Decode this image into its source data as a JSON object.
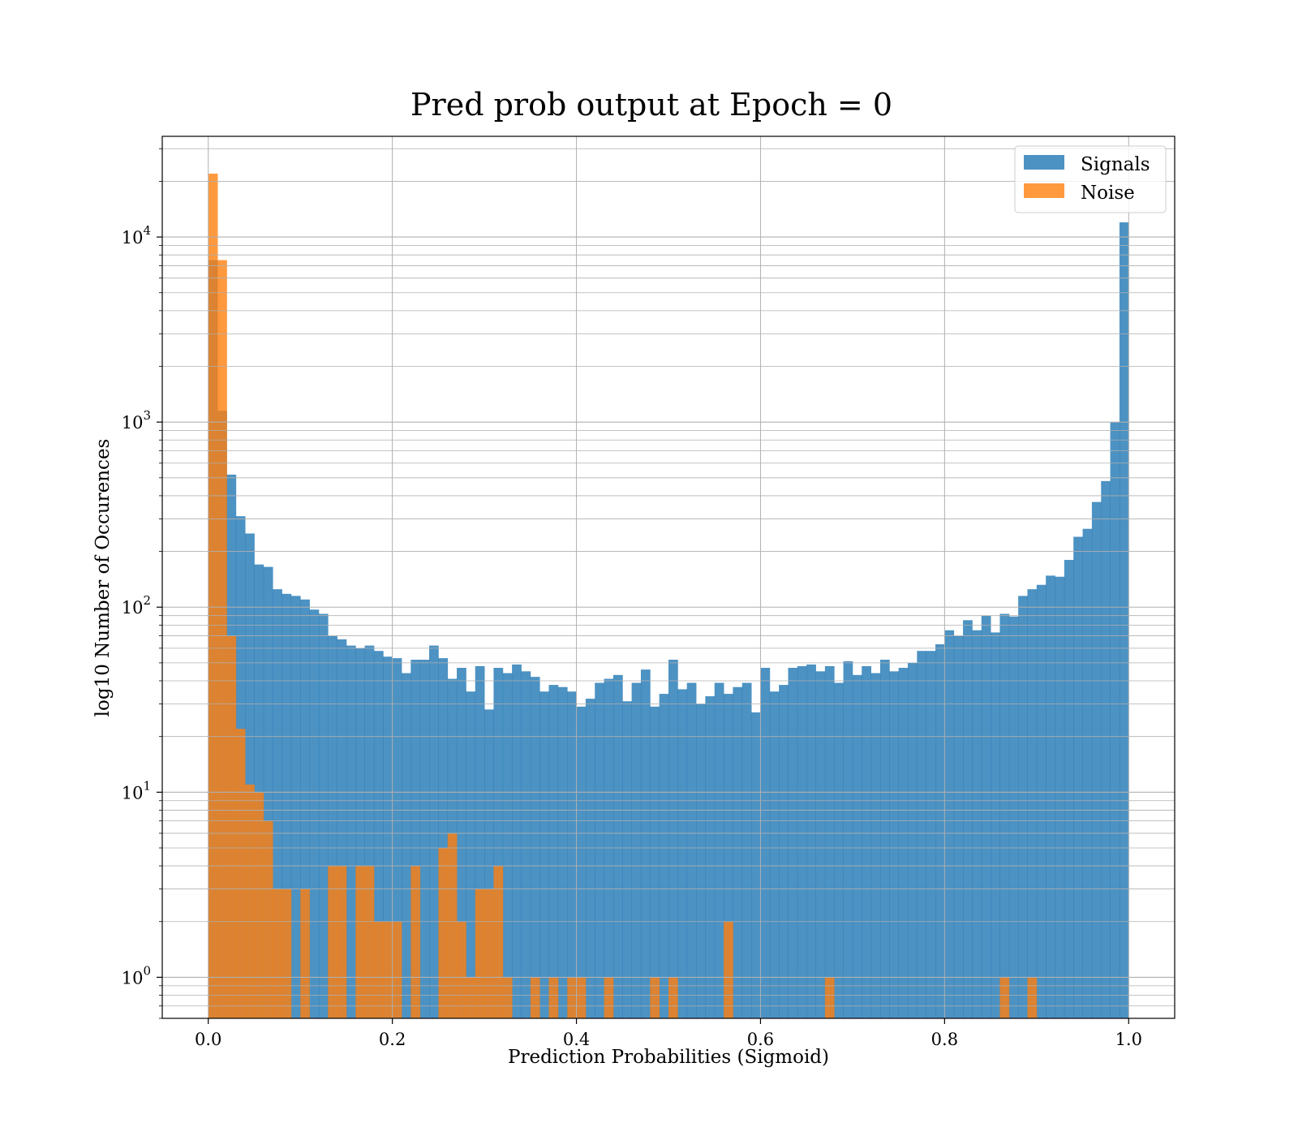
{
  "chart_data": {
    "type": "bar",
    "title": "Pred prob output at Epoch = 0",
    "xlabel": "Prediction Probabilities (Sigmoid)",
    "ylabel": "log10 Number of Occurences",
    "xlim": [
      -0.05,
      1.05
    ],
    "ylim": [
      0.6,
      35000
    ],
    "yscale": "log",
    "grid": true,
    "legend_position": "top-right",
    "x_ticks": [
      {
        "value": 0.0,
        "label": "0.0"
      },
      {
        "value": 0.2,
        "label": "0.2"
      },
      {
        "value": 0.4,
        "label": "0.4"
      },
      {
        "value": 0.6,
        "label": "0.6"
      },
      {
        "value": 0.8,
        "label": "0.8"
      },
      {
        "value": 1.0,
        "label": "1.0"
      }
    ],
    "y_ticks": [
      {
        "value": 1,
        "base": "10",
        "exp": "0"
      },
      {
        "value": 10,
        "base": "10",
        "exp": "1"
      },
      {
        "value": 100,
        "base": "10",
        "exp": "2"
      },
      {
        "value": 1000,
        "base": "10",
        "exp": "3"
      },
      {
        "value": 10000,
        "base": "10",
        "exp": "4"
      }
    ],
    "bin_width": 0.01,
    "series": [
      {
        "name": "Signals",
        "color": "#1f77b4",
        "opacity": 0.8,
        "bin_start": 0.0,
        "values": [
          7500,
          1150,
          520,
          310,
          250,
          170,
          165,
          125,
          118,
          115,
          110,
          97,
          92,
          70,
          67,
          62,
          60,
          62,
          58,
          54,
          53,
          44,
          52,
          52,
          62,
          53,
          41,
          47,
          35,
          48,
          28,
          47,
          44,
          49,
          45,
          42,
          35,
          38,
          37,
          35,
          29,
          32,
          39,
          41,
          43,
          31,
          39,
          46,
          29,
          34,
          52,
          36,
          39,
          30,
          33,
          39,
          34,
          37,
          39,
          27,
          47,
          35,
          38,
          47,
          48,
          49,
          45,
          48,
          39,
          51,
          43,
          48,
          44,
          52,
          45,
          47,
          50,
          58,
          58,
          63,
          75,
          70,
          85,
          75,
          90,
          73,
          92,
          89,
          115,
          125,
          132,
          148,
          146,
          180,
          240,
          265,
          370,
          480,
          1000,
          12000
        ]
      },
      {
        "name": "Noise",
        "color": "#ff7f0e",
        "opacity": 0.8,
        "bin_start": 0.0,
        "values": [
          22000,
          7500,
          70,
          22,
          11,
          10,
          7,
          3,
          3,
          0,
          3,
          0,
          0,
          4,
          4,
          0,
          4,
          4,
          2,
          2,
          2,
          0,
          4,
          0,
          0,
          5,
          6,
          2,
          1,
          3,
          3,
          4,
          1,
          0,
          0,
          1,
          0,
          1,
          0,
          1,
          1,
          0,
          0,
          1,
          0,
          0,
          0,
          0,
          1,
          0,
          1,
          0,
          0,
          0,
          0,
          0,
          2,
          0,
          0,
          0,
          0,
          0,
          0,
          0,
          0,
          0,
          0,
          1,
          0,
          0,
          0,
          0,
          0,
          0,
          0,
          0,
          0,
          0,
          0,
          0,
          0,
          0,
          0,
          0,
          0,
          0,
          1,
          0,
          0,
          1,
          0,
          0,
          0,
          0,
          0,
          0,
          0,
          0,
          0,
          0
        ]
      }
    ]
  }
}
